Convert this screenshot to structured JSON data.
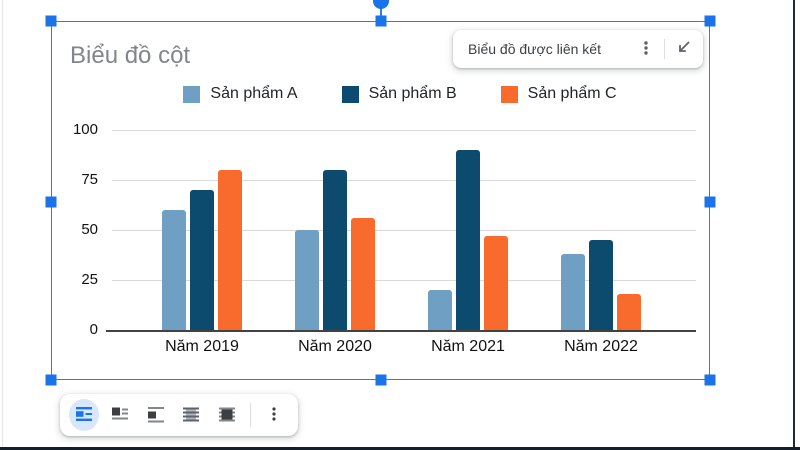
{
  "chart_data": {
    "type": "bar",
    "title": "Biểu đồ cột",
    "categories": [
      "Năm 2019",
      "Năm 2020",
      "Năm 2021",
      "Năm 2022"
    ],
    "series": [
      {
        "name": "Sản phẩm A",
        "color": "#6FA0C4",
        "values": [
          60,
          50,
          20,
          38
        ]
      },
      {
        "name": "Sản phẩm B",
        "color": "#0C4A6E",
        "values": [
          70,
          80,
          90,
          45
        ]
      },
      {
        "name": "Sản phẩm C",
        "color": "#F86B2C",
        "values": [
          80,
          56,
          47,
          18
        ]
      }
    ],
    "y_ticks": [
      0,
      25,
      50,
      75,
      100
    ],
    "ylim": [
      0,
      100
    ],
    "xlabel": "",
    "ylabel": "",
    "grid": true,
    "legend_position": "top"
  },
  "linked_chip": {
    "label": "Biểu đồ được liên kết",
    "more_icon": "vertical-dots-icon",
    "unlink_icon": "collapse-arrow-icon"
  },
  "toolbar": {
    "items": [
      {
        "name": "inline",
        "selected": true
      },
      {
        "name": "wrap-text",
        "selected": false
      },
      {
        "name": "break-text",
        "selected": false
      },
      {
        "name": "behind-text",
        "selected": false
      },
      {
        "name": "in-front-of-text",
        "selected": false
      }
    ],
    "more_icon": "vertical-dots-icon"
  },
  "colors": {
    "selection_blue": "#1a73e8",
    "selection_border": "#3c78d8",
    "grid_gray": "#d9d9d9",
    "axis_dark": "#424242",
    "title_gray": "#80868b"
  }
}
